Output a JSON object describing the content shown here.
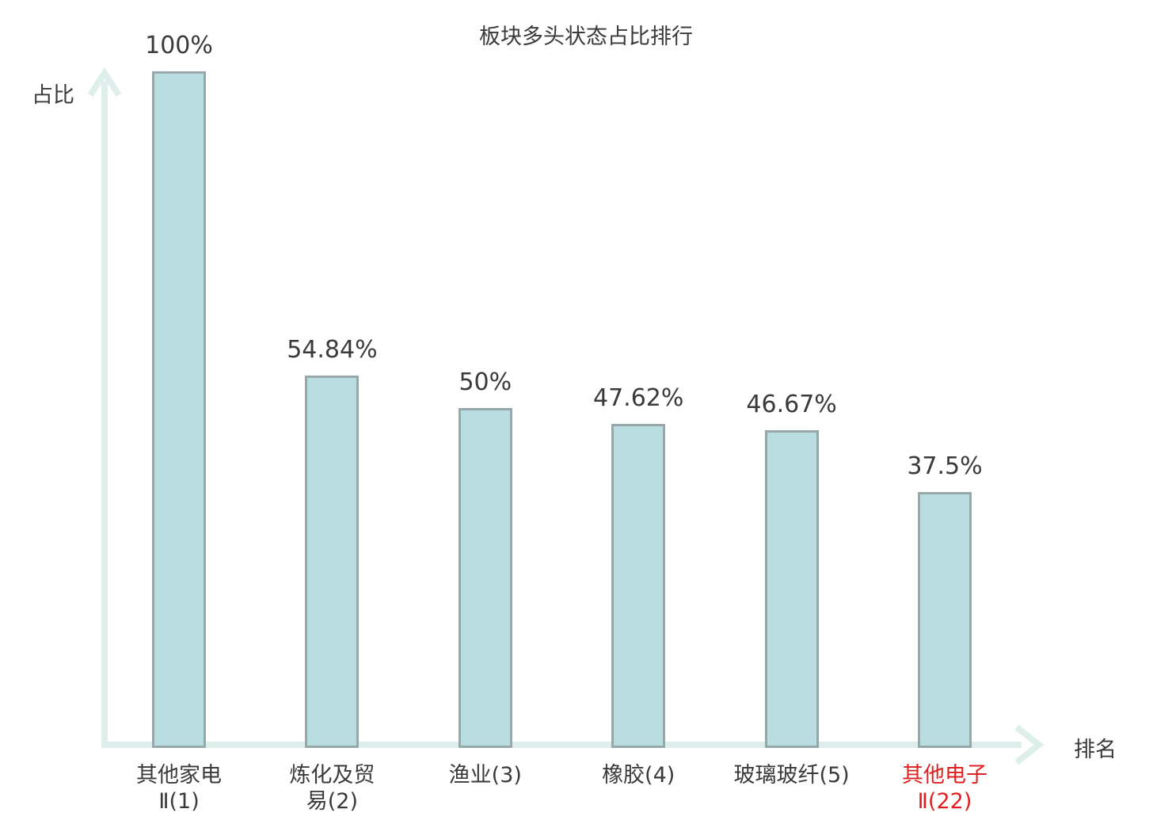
{
  "colors": {
    "bar_fill": "#b9dde0",
    "bar_border": "#97a8ab",
    "axis": "#ddeeeb",
    "text": "#3a3a3a",
    "highlight": "#e02020"
  },
  "chart_data": {
    "type": "bar",
    "title": "板块多头状态占比排行",
    "xlabel": "排名",
    "ylabel": "占比",
    "ylim": [
      0,
      100
    ],
    "grid": false,
    "legend": false,
    "categories": [
      "其他家电Ⅱ(1)",
      "炼化及贸易(2)",
      "渔业(3)",
      "橡胶(4)",
      "玻璃玻纤(5)",
      "其他电子Ⅱ(22)"
    ],
    "category_labels": [
      "其他家电\nⅡ(1)",
      "炼化及贸\n易(2)",
      "渔业(3)",
      "橡胶(4)",
      "玻璃玻纤(5)",
      "其他电子\nⅡ(22)"
    ],
    "values": [
      100,
      54.84,
      50,
      47.62,
      46.67,
      37.5
    ],
    "value_labels": [
      "100%",
      "54.84%",
      "50%",
      "47.62%",
      "46.67%",
      "37.5%"
    ],
    "ranks": [
      1,
      2,
      3,
      4,
      5,
      22
    ],
    "highlighted_index": 5
  }
}
